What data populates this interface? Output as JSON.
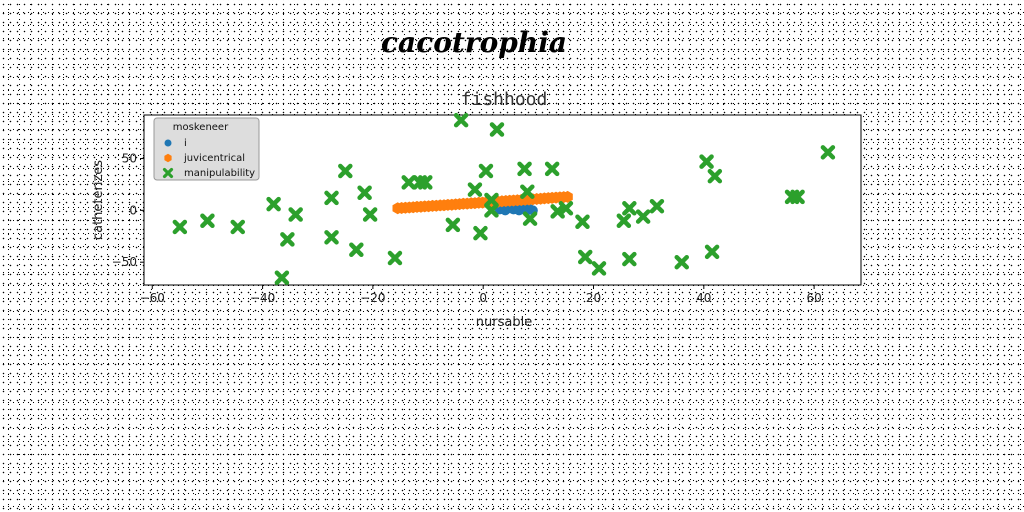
{
  "figure": {
    "title": "cacotrophia"
  },
  "chart_data": {
    "type": "scatter",
    "title": "fishhood",
    "xlabel": "nursable",
    "ylabel": "catheterizes",
    "xlim": [
      -61.5,
      68.5
    ],
    "ylim": [
      -72,
      92
    ],
    "xticks": [
      -60,
      -40,
      -20,
      0,
      20,
      40,
      60
    ],
    "yticks": [
      -50,
      0,
      50
    ],
    "grid": false,
    "legend": {
      "title": "moskeneer",
      "position": "top-left"
    },
    "series": [
      {
        "name": "i",
        "color": "#1f77b4",
        "marker": "circle",
        "x": [
          3.0,
          4.0,
          5.0,
          5.5,
          6.5,
          7.0,
          7.5,
          8.0,
          8.5,
          9.0
        ],
        "y": [
          1,
          0,
          2,
          1,
          0,
          1,
          2,
          0,
          1,
          0
        ]
      },
      {
        "name": "juvicentrical",
        "color": "#ff7f0e",
        "marker": "hexagon",
        "x": [
          -15.5,
          -14.8,
          -14.1,
          -13.4,
          -12.7,
          -12.0,
          -11.3,
          -10.6,
          -9.9,
          -9.2,
          -8.5,
          -7.8,
          -7.1,
          -6.4,
          -5.7,
          -5.0,
          -4.3,
          -3.6,
          -2.9,
          -2.2,
          -1.5,
          -0.8,
          -0.1,
          0.6,
          1.3,
          2.0,
          2.7,
          3.4,
          4.1,
          4.8,
          5.5,
          6.2,
          6.9,
          7.6,
          8.3,
          9.0,
          9.7,
          10.4,
          11.1,
          11.8,
          12.5,
          13.2,
          13.9,
          14.6,
          15.3
        ],
        "y": [
          2.0,
          2.3,
          2.5,
          2.8,
          3.0,
          3.3,
          3.5,
          3.8,
          4.0,
          4.3,
          4.5,
          4.8,
          5.0,
          5.3,
          5.5,
          5.8,
          6.0,
          6.3,
          6.5,
          6.8,
          7.0,
          7.3,
          7.5,
          7.8,
          8.0,
          8.3,
          8.5,
          8.8,
          9.0,
          9.3,
          9.5,
          9.8,
          10.0,
          10.3,
          10.5,
          10.8,
          11.0,
          11.3,
          11.5,
          11.8,
          12.0,
          12.3,
          12.5,
          12.8,
          13.0
        ]
      },
      {
        "name": "manipulability",
        "color": "#2ca02c",
        "marker": "x-filled",
        "x": [
          -55,
          -50,
          -44.5,
          -38,
          -35.5,
          -34,
          -36.5,
          -27.5,
          -27.5,
          -25,
          -23,
          -21.5,
          -20.5,
          -16,
          -13.5,
          -11.5,
          -10.5,
          -5.5,
          -4,
          -1.5,
          -0.5,
          0.5,
          1.5,
          1.5,
          2.5,
          7.5,
          8,
          8.5,
          12.5,
          13.5,
          15,
          18,
          18.5,
          21,
          25.5,
          26.5,
          26.5,
          29,
          31.5,
          36,
          40.5,
          41.5,
          42,
          56,
          57,
          62.5
        ],
        "y": [
          -16,
          -10,
          -16,
          6,
          -28,
          -4,
          -65,
          12,
          -26,
          38,
          -38,
          17,
          -4,
          -46,
          27,
          27,
          27,
          -14,
          87,
          20,
          -22,
          38,
          0,
          10,
          78,
          40,
          18,
          -8,
          40,
          -1,
          2,
          -11,
          -45,
          -56,
          -10,
          -47,
          2,
          -6,
          4,
          -50,
          47,
          -40,
          33,
          13,
          13,
          56
        ]
      }
    ]
  }
}
